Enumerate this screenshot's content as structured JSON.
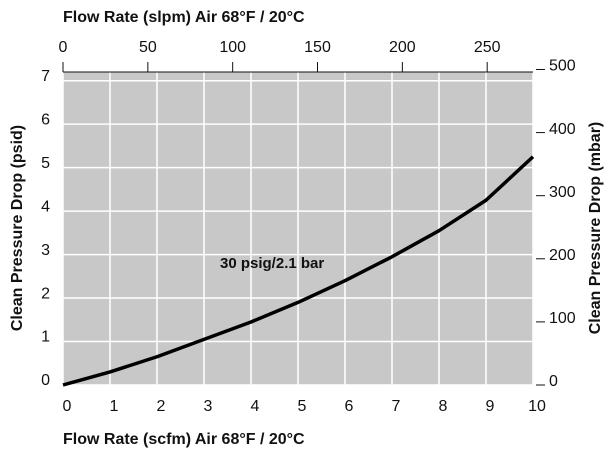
{
  "chart_data": {
    "type": "line",
    "xlabel": "Flow Rate (scfm) Air 68°F / 20°C",
    "x2label": "Flow Rate (slpm) Air 68°F / 20°C",
    "ylabel": "Clean Pressure Drop (psid)",
    "y2label": "Clean Pressure Drop (mbar)",
    "annotation": "30 psig/2.1 bar",
    "x": [
      0,
      1,
      2,
      3,
      4,
      5,
      6,
      7,
      8,
      9,
      10
    ],
    "series": [
      {
        "name": "30 psig/2.1 bar",
        "color": "#000000",
        "values": [
          0,
          0.3,
          0.65,
          1.05,
          1.45,
          1.9,
          2.4,
          2.95,
          3.55,
          4.25,
          5.25
        ]
      }
    ],
    "xlim": [
      0,
      10
    ],
    "xticks": [
      0,
      1,
      2,
      3,
      4,
      5,
      6,
      7,
      8,
      9,
      10
    ],
    "x2lim": [
      0,
      277
    ],
    "x2ticks": [
      0,
      50,
      100,
      150,
      200,
      250
    ],
    "ylim": [
      0,
      7.2
    ],
    "yticks": [
      0,
      1,
      2,
      3,
      4,
      5,
      6,
      7
    ],
    "y2lim": [
      0,
      496
    ],
    "y2ticks": [
      0,
      100,
      200,
      300,
      400,
      500
    ],
    "grid": true,
    "background": "#c8c8c8"
  }
}
